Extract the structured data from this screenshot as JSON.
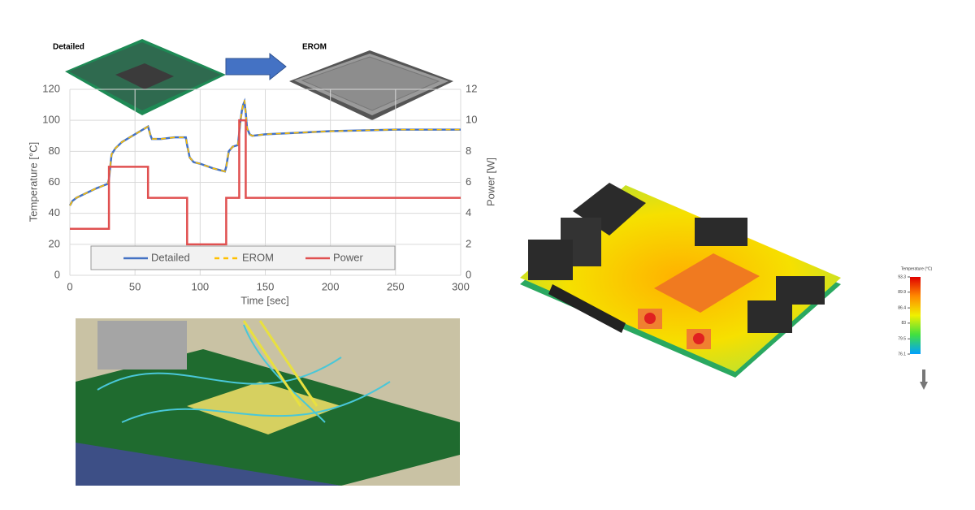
{
  "chart_data": {
    "type": "line",
    "xlabel": "Time [sec]",
    "ylabel": "Temperature [°C]",
    "y2label": "Power [W]",
    "xlim": [
      0,
      300
    ],
    "xticks": [
      0,
      50,
      100,
      150,
      200,
      250,
      300
    ],
    "ylim": [
      0,
      120
    ],
    "yticks": [
      0,
      20,
      40,
      60,
      80,
      100,
      120
    ],
    "y2lim": [
      0,
      12
    ],
    "y2ticks": [
      0,
      2,
      4,
      6,
      8,
      10,
      12
    ],
    "grid": true,
    "legend": "bottom",
    "series": [
      {
        "name": "Detailed",
        "color": "#4472c4",
        "dash": false,
        "x": [
          0,
          2,
          5,
          10,
          20,
          29,
          30,
          32,
          35,
          40,
          50,
          60,
          62,
          63,
          70,
          80,
          89,
          90,
          92,
          95,
          100,
          110,
          119,
          120,
          122,
          125,
          129,
          130,
          131,
          132,
          133,
          134,
          135,
          136,
          138,
          140,
          150,
          200,
          250,
          300
        ],
        "values": [
          45,
          48,
          50,
          52,
          56,
          59,
          62,
          78,
          82,
          86,
          91,
          96,
          90,
          88,
          88,
          89,
          89,
          84,
          76,
          73,
          72,
          69,
          67,
          70,
          80,
          83,
          84,
          92,
          100,
          106,
          110,
          112,
          105,
          95,
          91,
          90,
          91,
          93,
          94,
          94
        ]
      },
      {
        "name": "EROM",
        "color": "#ffc000",
        "dash": true,
        "x": [
          0,
          2,
          5,
          10,
          20,
          29,
          30,
          32,
          35,
          40,
          50,
          60,
          62,
          63,
          70,
          80,
          89,
          90,
          92,
          95,
          100,
          110,
          119,
          120,
          122,
          125,
          129,
          130,
          131,
          132,
          133,
          134,
          135,
          136,
          138,
          140,
          150,
          200,
          250,
          300
        ],
        "values": [
          45,
          48,
          50,
          52,
          56,
          59,
          62,
          78,
          82,
          86,
          91,
          96,
          90,
          88,
          88,
          89,
          89,
          84,
          76,
          73,
          72,
          69,
          67,
          70,
          80,
          83,
          84,
          92,
          100,
          106,
          110,
          113,
          105,
          95,
          91,
          90,
          91,
          93,
          94,
          94
        ]
      },
      {
        "name": "Power",
        "color": "#e05050",
        "dash": false,
        "axis": "y2",
        "x": [
          0,
          30,
          30,
          60,
          60,
          90,
          90,
          120,
          120,
          130,
          130,
          135,
          135,
          300
        ],
        "values": [
          3,
          3,
          7,
          7,
          5,
          5,
          2,
          2,
          5,
          5,
          10,
          10,
          5,
          5
        ]
      }
    ]
  },
  "figure": {
    "model_labels": [
      "Detailed",
      "EROM"
    ],
    "colorbar": {
      "title": "Temperature (°C)",
      "ticks": [
        93.3,
        89.9,
        86.4,
        83,
        79.5,
        76.1
      ]
    }
  }
}
